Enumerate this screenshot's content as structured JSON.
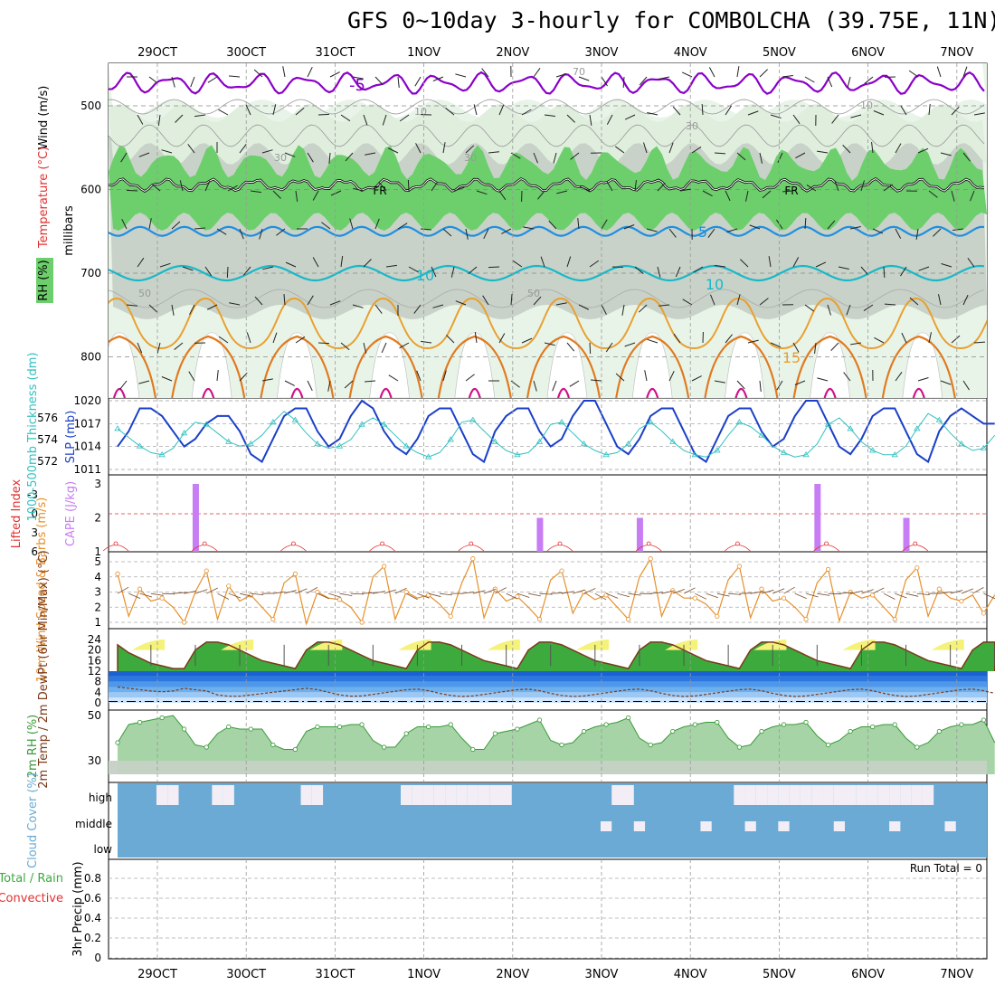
{
  "title": "GFS 0~10day 3-hourly for COMBOLCHA (39.75E, 11N)",
  "dates": [
    "29OCT",
    "30OCT",
    "31OCT",
    "1NOV",
    "2NOV",
    "3NOV",
    "4NOV",
    "5NOV",
    "6NOV",
    "7NOV"
  ],
  "colors": {
    "temp_purple": "#8a00c8",
    "temp_blue": "#1f8fe0",
    "temp_cyan": "#19b8c8",
    "temp_orange_light": "#e8a030",
    "temp_orange": "#e07a20",
    "temp_magenta": "#d0108a",
    "rh_green": "#6ccf6c",
    "rh_dark": "#c8d2c8",
    "slp": "#1a3fc8",
    "thickness": "#33c0c0",
    "cape": "#c77df3",
    "lifted": "#e03030",
    "wind10": "#e6902a",
    "temp2m": "#3daa3d",
    "dew": "#2a78e0",
    "cloud": "#6aaad4",
    "cloud_gap": "#f3eef6"
  },
  "chart_data": [
    {
      "type": "contour",
      "panel": "upper-air",
      "ylabel_parts": [
        "Wind (m/s)",
        "Temperature (°C)",
        "RH (%)"
      ],
      "yaxis_label": "millibars",
      "y_ticks": [
        500,
        600,
        700,
        800
      ],
      "ylim": [
        850,
        450
      ],
      "freezing_label": "FR",
      "contour_labels": [
        "-5",
        "5",
        "10",
        "10",
        "15",
        "10",
        "30",
        "30",
        "30",
        "50",
        "50",
        "10",
        "70"
      ],
      "levels_temperature_c": {
        "-5": 475,
        "0": 600,
        "5": 660,
        "10": 705,
        "15": 780
      },
      "rh_levels_pct": [
        10,
        30,
        50,
        70,
        90
      ]
    },
    {
      "type": "line",
      "panel": "slp-thickness",
      "ylabel_left": "1000-500mb Thickness (dm)",
      "ylabel_right": "SLP (mb)",
      "left_ticks": [
        572,
        574,
        576
      ],
      "right_ticks": [
        1011,
        1014,
        1017,
        1020
      ],
      "x_hours_step": 3,
      "series": [
        {
          "name": "SLP (mb)",
          "values": [
            1014,
            1016,
            1019,
            1019,
            1018,
            1016,
            1014,
            1015,
            1017,
            1018,
            1018,
            1016,
            1013,
            1012,
            1015,
            1018,
            1019,
            1019,
            1016,
            1014,
            1015,
            1018,
            1020,
            1019,
            1016,
            1014,
            1013,
            1015,
            1018,
            1019,
            1019,
            1016,
            1013,
            1012,
            1016,
            1018,
            1019,
            1019,
            1016,
            1014,
            1015,
            1018,
            1020,
            1020,
            1017,
            1014,
            1013,
            1015,
            1018,
            1019,
            1019,
            1016,
            1013,
            1012,
            1015,
            1018,
            1019,
            1019,
            1016,
            1014,
            1015,
            1018,
            1020,
            1020,
            1017,
            1014,
            1013,
            1015,
            1018,
            1019,
            1019,
            1016,
            1013,
            1012,
            1016,
            1018,
            1019,
            1018,
            1017,
            1017
          ]
        },
        {
          "name": "Thickness (dm)",
          "values": [
            575.0,
            574.2,
            573.4,
            572.8,
            572.6,
            573.2,
            574.6,
            575.6,
            575.4,
            574.6,
            573.8,
            573.4,
            573.6,
            574.4,
            575.6,
            576.6,
            575.8,
            574.6,
            573.6,
            573.2,
            573.4,
            574.0,
            575.4,
            576.0,
            575.4,
            574.4,
            573.4,
            572.8,
            572.4,
            572.8,
            574.0,
            575.6,
            575.8,
            574.8,
            573.8,
            573.0,
            572.6,
            572.8,
            573.8,
            575.4,
            575.6,
            574.6,
            573.6,
            573.0,
            572.6,
            572.8,
            573.6,
            575.0,
            575.6,
            574.8,
            573.8,
            573.0,
            572.6,
            572.4,
            573.0,
            574.4,
            575.6,
            575.2,
            574.4,
            573.4,
            572.8,
            572.4,
            572.6,
            573.6,
            575.4,
            576.0,
            575.0,
            573.8,
            573.0,
            572.6,
            572.6,
            573.4,
            575.0,
            576.4,
            575.8,
            574.6,
            573.6,
            573.0,
            573.2,
            574.4
          ]
        }
      ]
    },
    {
      "type": "bar",
      "panel": "cape-lifted",
      "ylabel_left": "Lifted Index",
      "ylabel_right": "CAPE (J/kg)",
      "li_ticks": [
        -3,
        0,
        3,
        6
      ],
      "cape_ticks": [
        1,
        2,
        3
      ],
      "cape_bars": [
        {
          "time_index": 7,
          "value": 3.0
        },
        {
          "time_index": 38,
          "value": 2.0
        },
        {
          "time_index": 47,
          "value": 2.0
        },
        {
          "time_index": 63,
          "value": 3.0
        },
        {
          "time_index": 71,
          "value": 2.0
        }
      ],
      "lifted_index_zero_line": 0
    },
    {
      "type": "line",
      "panel": "wind10m",
      "ylabel": "10m Wind Speed & Barbs (m/s)",
      "y_ticks": [
        1,
        2,
        3,
        4,
        5
      ],
      "ylim": [
        0.7,
        5.3
      ],
      "series": [
        {
          "name": "10m Wind Speed",
          "values": [
            4.2,
            1.4,
            3.2,
            2.4,
            2.6,
            2.0,
            1.0,
            3.0,
            4.4,
            1.2,
            3.4,
            2.4,
            2.8,
            2.0,
            1.2,
            3.6,
            4.2,
            0.9,
            3.0,
            2.6,
            2.5,
            2.0,
            1.0,
            4.0,
            4.7,
            1.2,
            3.0,
            2.6,
            2.8,
            2.2,
            1.4,
            3.6,
            5.2,
            1.3,
            3.2,
            2.4,
            2.7,
            2.0,
            1.2,
            3.8,
            4.4,
            1.6,
            3.0,
            2.5,
            2.8,
            2.0,
            1.2,
            4.0,
            5.2,
            1.4,
            3.1,
            2.6,
            2.6,
            2.2,
            1.4,
            3.8,
            4.7,
            1.3,
            3.2,
            2.4,
            2.6,
            2.0,
            1.2,
            3.6,
            4.5,
            1.1,
            3.0,
            2.6,
            2.8,
            2.0,
            1.2,
            3.8,
            4.6,
            1.4,
            3.2,
            2.6,
            2.4,
            2.8,
            1.6,
            2.8
          ]
        }
      ]
    },
    {
      "type": "area",
      "panel": "2m-temp-dew",
      "ylabel": "2m Temp / 2m DewPt (6hr Min/Max) (°C)",
      "y_ticks": [
        0,
        4,
        8,
        12,
        16,
        20,
        24
      ],
      "ylim": [
        0,
        24
      ],
      "series": [
        {
          "name": "2m Temp",
          "values": [
            22,
            19,
            17,
            15,
            14,
            13,
            13,
            20,
            23,
            23,
            22,
            20,
            18,
            16,
            15,
            14,
            13,
            20,
            23,
            23,
            22,
            20,
            18,
            16,
            15,
            14,
            13,
            20,
            23,
            23,
            22,
            20,
            18,
            16,
            15,
            14,
            13,
            20,
            23,
            23,
            22,
            20,
            18,
            16,
            15,
            14,
            13,
            20,
            23,
            23,
            22,
            20,
            18,
            16,
            15,
            14,
            13,
            20,
            23,
            23,
            22,
            20,
            18,
            16,
            15,
            14,
            13,
            20,
            23,
            23,
            22,
            20,
            18,
            16,
            15,
            14,
            13,
            20,
            23,
            23
          ]
        },
        {
          "name": "2m DewPt",
          "values": [
            6,
            5.5,
            5,
            4.5,
            4.2,
            4.5,
            5.5,
            5,
            4.5,
            3,
            2.5,
            2.5,
            3,
            3.5,
            4,
            4.5,
            5,
            5.5,
            5,
            4,
            3,
            2.5,
            2.6,
            3.2,
            3.8,
            4.4,
            5,
            5.2,
            4.6,
            3.6,
            2.8,
            2.4,
            2.6,
            3.2,
            3.8,
            4.4,
            5,
            5.2,
            4.6,
            3.6,
            2.8,
            2.4,
            2.6,
            3.2,
            3.8,
            4.4,
            5,
            5.2,
            4.6,
            3.6,
            2.8,
            2.4,
            2.6,
            3.2,
            3.8,
            4.4,
            5,
            5.2,
            4.6,
            3.6,
            2.8,
            2.4,
            2.6,
            3.2,
            3.8,
            4.4,
            5,
            5.2,
            4.6,
            3.6,
            2.8,
            2.4,
            2.6,
            3.2,
            3.8,
            4.4,
            5,
            5.2,
            4.6,
            3.6
          ]
        }
      ]
    },
    {
      "type": "area",
      "panel": "2m-rh",
      "ylabel": "2m RH (%)",
      "y_ticks": [
        30,
        50
      ],
      "ylim": [
        24,
        52
      ],
      "series": [
        {
          "name": "2m RH",
          "values": [
            38,
            46,
            47,
            48,
            49,
            50,
            44,
            37,
            36,
            42,
            45,
            44,
            44,
            44,
            37,
            35,
            35,
            43,
            45,
            45,
            45,
            46,
            46,
            39,
            36,
            36,
            42,
            45,
            45,
            45,
            46,
            40,
            35,
            35,
            42,
            43,
            44,
            46,
            48,
            39,
            37,
            38,
            43,
            45,
            46,
            47,
            49,
            40,
            37,
            38,
            43,
            45,
            46,
            47,
            47,
            40,
            36,
            37,
            43,
            45,
            46,
            46,
            47,
            41,
            37,
            39,
            43,
            45,
            45,
            46,
            46,
            40,
            36,
            38,
            43,
            45,
            46,
            46,
            48,
            38
          ]
        }
      ]
    },
    {
      "type": "heatmap",
      "panel": "cloud-cover",
      "ylabel": "Cloud Cover (%)",
      "rows": [
        "high",
        "middle",
        "low"
      ],
      "high_clear_steps": [
        4,
        5,
        9,
        10,
        17,
        18,
        26,
        27,
        28,
        29,
        30,
        31,
        32,
        33,
        34,
        35,
        45,
        46,
        56,
        57,
        58,
        59,
        60,
        61,
        62,
        63,
        64,
        65,
        66,
        67,
        68,
        69,
        70,
        71,
        72,
        73
      ]
    },
    {
      "type": "bar",
      "panel": "precip",
      "ylabel": "3hr Precip (mm)",
      "legend_left": [
        "Total / Rain",
        "Convective"
      ],
      "y_ticks": [
        0,
        0.2,
        0.4,
        0.6,
        0.8
      ],
      "ylim": [
        0,
        1
      ],
      "run_total_label": "Run Total = 0",
      "values": []
    }
  ]
}
